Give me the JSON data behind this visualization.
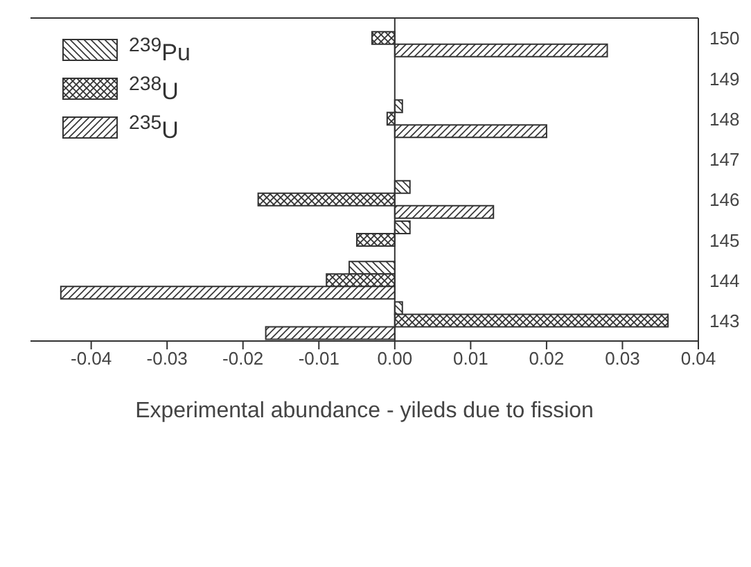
{
  "chart_data": {
    "type": "bar",
    "orientation": "horizontal",
    "xlabel": "Experimental abundance - yileds due to fission",
    "categories": [
      "150",
      "149",
      "148",
      "147",
      "146",
      "145",
      "144",
      "143"
    ],
    "series": [
      {
        "name": "$^{239}$Pu",
        "color": "#333333",
        "values": [
          null,
          null,
          0.001,
          null,
          0.002,
          0.002,
          -0.006,
          0.001
        ]
      },
      {
        "name": "$^{238}$U",
        "color": "#333333",
        "values": [
          -0.003,
          null,
          -0.001,
          null,
          -0.018,
          -0.005,
          -0.009,
          0.036
        ]
      },
      {
        "name": "$^{235}$U",
        "color": "#333333",
        "values": [
          0.028,
          null,
          0.02,
          null,
          0.013,
          null,
          -0.044,
          -0.017
        ]
      }
    ],
    "xlim": [
      -0.048,
      0.04
    ],
    "xticks": [
      -0.04,
      -0.03,
      -0.02,
      -0.01,
      "0.00",
      0.01,
      0.02,
      0.03,
      0.04
    ],
    "grid": false,
    "legend": "top left"
  }
}
